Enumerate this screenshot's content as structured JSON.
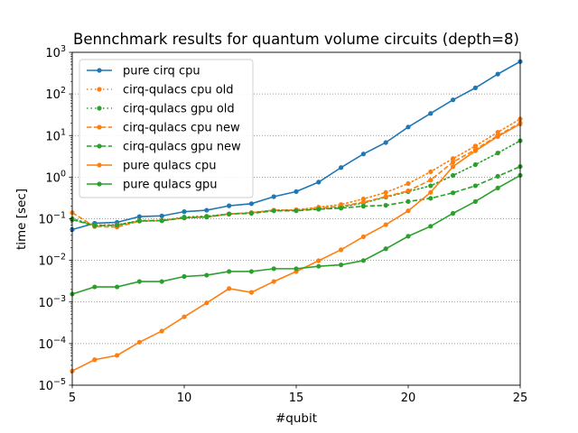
{
  "chart_data": {
    "type": "line",
    "title": "Bennchmark results for quantum volume circuits (depth=8)",
    "xlabel": "#qubit",
    "ylabel": "time [sec]",
    "xlim": [
      5,
      25
    ],
    "ylim": [
      1e-05,
      1000
    ],
    "yscale": "log",
    "xticks": [
      "5",
      "10",
      "15",
      "20",
      "25"
    ],
    "yticks": [
      {
        "base": "10",
        "exp": "−5"
      },
      {
        "base": "10",
        "exp": "−4"
      },
      {
        "base": "10",
        "exp": "−3"
      },
      {
        "base": "10",
        "exp": "−2"
      },
      {
        "base": "10",
        "exp": "−1"
      },
      {
        "base": "10",
        "exp": "0"
      },
      {
        "base": "10",
        "exp": "1"
      },
      {
        "base": "10",
        "exp": "2"
      },
      {
        "base": "10",
        "exp": "3"
      }
    ],
    "grid": "horizontal dotted at major y ticks",
    "legend_position": "upper-left",
    "x": [
      5,
      6,
      7,
      8,
      9,
      10,
      11,
      12,
      13,
      14,
      15,
      16,
      17,
      18,
      19,
      20,
      21,
      22,
      23,
      24,
      25
    ],
    "series": [
      {
        "name": "pure cirq cpu",
        "color": "#1f77b4",
        "linestyle": "solid",
        "values": [
          0.055,
          0.078,
          0.082,
          0.113,
          0.117,
          0.148,
          0.16,
          0.205,
          0.23,
          0.34,
          0.45,
          0.76,
          1.7,
          3.6,
          6.8,
          16,
          34,
          72,
          140,
          300,
          600
        ]
      },
      {
        "name": "cirq-qulacs cpu old",
        "color": "#ff7f0e",
        "linestyle": "dotted",
        "values": [
          0.095,
          0.07,
          0.072,
          0.09,
          0.092,
          0.105,
          0.112,
          0.13,
          0.14,
          0.16,
          0.165,
          0.19,
          0.22,
          0.3,
          0.43,
          0.7,
          1.35,
          2.8,
          5.6,
          12,
          25
        ]
      },
      {
        "name": "cirq-qulacs gpu old",
        "color": "#2ca02c",
        "linestyle": "dotted",
        "values": [
          0.1,
          0.07,
          0.07,
          0.09,
          0.09,
          0.11,
          0.115,
          0.13,
          0.14,
          0.16,
          0.16,
          0.17,
          0.19,
          0.24,
          0.33,
          0.45,
          0.62,
          1.1,
          2.0,
          3.8,
          7.5
        ]
      },
      {
        "name": "cirq-qulacs cpu new",
        "color": "#ff7f0e",
        "linestyle": "dashed",
        "values": [
          0.14,
          0.065,
          0.063,
          0.088,
          0.09,
          0.105,
          0.11,
          0.13,
          0.14,
          0.16,
          0.16,
          0.18,
          0.2,
          0.25,
          0.34,
          0.47,
          0.85,
          2.3,
          4.6,
          10,
          20
        ]
      },
      {
        "name": "cirq-qulacs gpu new",
        "color": "#2ca02c",
        "linestyle": "dashed",
        "values": [
          0.095,
          0.068,
          0.07,
          0.088,
          0.09,
          0.105,
          0.11,
          0.13,
          0.135,
          0.155,
          0.155,
          0.17,
          0.18,
          0.2,
          0.21,
          0.26,
          0.31,
          0.42,
          0.62,
          1.05,
          1.8
        ]
      },
      {
        "name": "pure qulacs cpu",
        "color": "#ff7f0e",
        "linestyle": "solid",
        "values": [
          2.2e-05,
          4.1e-05,
          5.2e-05,
          0.000108,
          0.0002,
          0.00044,
          0.00095,
          0.0021,
          0.0017,
          0.0031,
          0.0054,
          0.0098,
          0.018,
          0.037,
          0.072,
          0.155,
          0.43,
          1.8,
          4.3,
          9.5,
          19
        ]
      },
      {
        "name": "pure qulacs gpu",
        "color": "#2ca02c",
        "linestyle": "solid",
        "values": [
          0.00155,
          0.0023,
          0.0023,
          0.0031,
          0.0031,
          0.0041,
          0.0044,
          0.0054,
          0.0054,
          0.0063,
          0.0063,
          0.0072,
          0.0078,
          0.0099,
          0.019,
          0.038,
          0.066,
          0.135,
          0.26,
          0.55,
          1.1
        ]
      }
    ]
  }
}
